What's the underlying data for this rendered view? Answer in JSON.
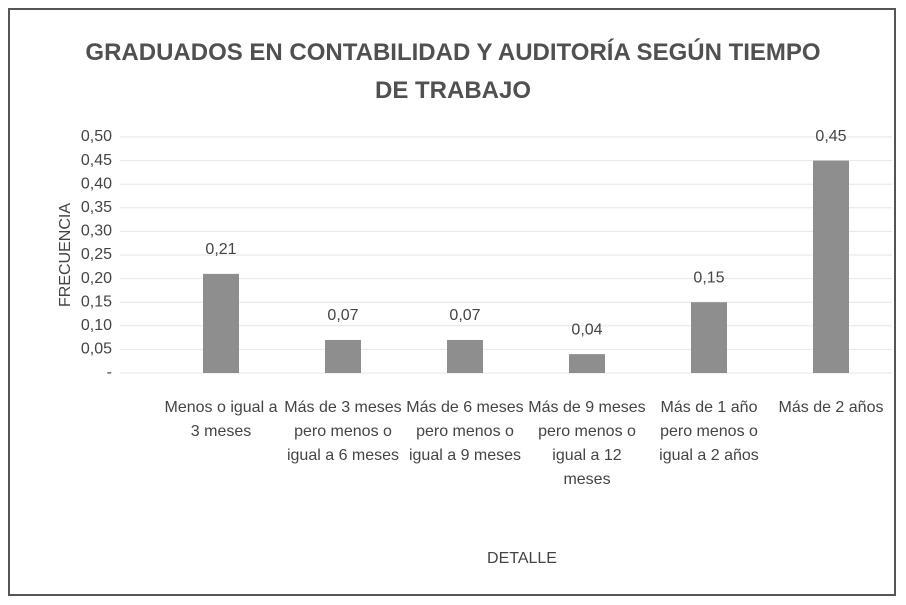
{
  "chart_data": {
    "type": "bar",
    "title": "GRADUADOS EN CONTABILIDAD Y AUDITORÍA SEGÚN TIEMPO DE TRABAJO",
    "categories": [
      "Menos o igual a 3 meses",
      "Más de 3 meses pero menos o igual a 6 meses",
      "Más de 6 meses pero menos o igual a 9 meses",
      "Más de 9 meses pero menos o igual a 12 meses",
      "Más de 1 año pero menos o igual a 2 años",
      "Más de 2 años"
    ],
    "values": [
      0.21,
      0.07,
      0.07,
      0.04,
      0.15,
      0.45
    ],
    "value_labels": [
      "0,21",
      "0,07",
      "0,07",
      "0,04",
      "0,15",
      "0,45"
    ],
    "color": "#8e8e8e",
    "x_label": "DETALLE",
    "y_label": "FRECUENCIA",
    "ylim": [
      0,
      0.5
    ],
    "yticks": [
      {
        "value": 0,
        "label": "-"
      },
      {
        "value": 0.05,
        "label": "0,05"
      },
      {
        "value": 0.1,
        "label": "0,10"
      },
      {
        "value": 0.15,
        "label": "0,15"
      },
      {
        "value": 0.2,
        "label": "0,20"
      },
      {
        "value": 0.25,
        "label": "0,25"
      },
      {
        "value": 0.3,
        "label": "0,30"
      },
      {
        "value": 0.35,
        "label": "0,35"
      },
      {
        "value": 0.4,
        "label": "0,40"
      },
      {
        "value": 0.45,
        "label": "0,45"
      },
      {
        "value": 0.5,
        "label": "0,50"
      }
    ],
    "grid": true
  }
}
